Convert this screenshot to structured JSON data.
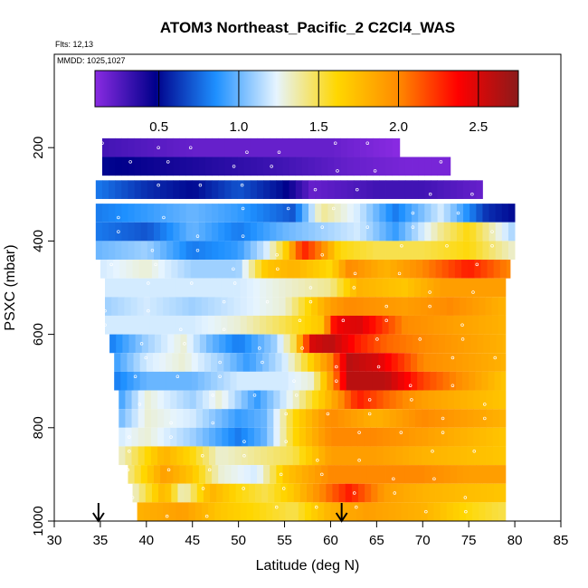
{
  "chart_data": {
    "type": "heatmap",
    "title": "ATOM3 Northeast_Pacific_2 C2Cl4_WAS",
    "notes": [
      "Flts: 12,13",
      "MMDD: 1025,1027"
    ],
    "xlabel": "Latitude (deg N)",
    "ylabel": "PSXC (mbar)",
    "xlim": [
      30,
      85
    ],
    "ylim": [
      1000,
      0
    ],
    "xticks": [
      "30",
      "35",
      "40",
      "45",
      "50",
      "55",
      "60",
      "65",
      "70",
      "75",
      "80",
      "85"
    ],
    "yticks": [
      "200",
      "400",
      "600",
      "800",
      "1000"
    ],
    "colorbar": {
      "min": 0.1,
      "max": 2.75,
      "ticks": [
        "0.5",
        "1.0",
        "1.5",
        "2.0",
        "2.5"
      ],
      "colors": [
        "#8a2be2",
        "#00008b",
        "#1e90ff",
        "#e6f4ff",
        "#ffd700",
        "#ff8c00",
        "#ff0000",
        "#8b1a1a"
      ]
    },
    "arrows_lat": [
      34.8,
      61.2
    ],
    "bands": [
      {
        "p": 200,
        "lat0": 35.2,
        "lat1": 67.5,
        "stops": [
          [
            35,
            0.3
          ],
          [
            45,
            0.2
          ],
          [
            55,
            0.2
          ],
          [
            60,
            0.2
          ],
          [
            67.5,
            0.1
          ]
        ]
      },
      {
        "p": 240,
        "lat0": 35.2,
        "lat1": 73.0,
        "stops": [
          [
            35,
            0.5
          ],
          [
            45,
            0.4
          ],
          [
            55,
            0.3
          ],
          [
            62,
            0.2
          ],
          [
            68,
            0.15
          ],
          [
            73,
            0.15
          ]
        ]
      },
      {
        "p": 290,
        "lat0": 34.5,
        "lat1": 76.5,
        "stops": [
          [
            34.5,
            0.8
          ],
          [
            40,
            0.6
          ],
          [
            45,
            0.5
          ],
          [
            50,
            0.7
          ],
          [
            55,
            0.5
          ],
          [
            58,
            0.2
          ],
          [
            65,
            0.3
          ],
          [
            70,
            0.3
          ],
          [
            76.5,
            0.2
          ]
        ]
      },
      {
        "p": 340,
        "lat0": 34.5,
        "lat1": 80.0,
        "stops": [
          [
            34.5,
            0.8
          ],
          [
            40,
            0.9
          ],
          [
            45,
            1.0
          ],
          [
            50,
            0.9
          ],
          [
            56,
            0.7
          ],
          [
            59,
            1.4
          ],
          [
            63,
            1.2
          ],
          [
            67,
            0.8
          ],
          [
            72,
            1.2
          ],
          [
            77,
            0.6
          ],
          [
            80,
            0.5
          ]
        ]
      },
      {
        "p": 380,
        "lat0": 34.5,
        "lat1": 80.0,
        "stops": [
          [
            34.5,
            0.8
          ],
          [
            40,
            0.7
          ],
          [
            45,
            1.0
          ],
          [
            50,
            0.8
          ],
          [
            55,
            1.0
          ],
          [
            59,
            1.1
          ],
          [
            63,
            1.2
          ],
          [
            67,
            0.9
          ],
          [
            72,
            1.4
          ],
          [
            75,
            1.6
          ],
          [
            80,
            1.1
          ]
        ]
      },
      {
        "p": 420,
        "lat0": 34.5,
        "lat1": 80.0,
        "stops": [
          [
            34.5,
            1.0
          ],
          [
            40,
            1.1
          ],
          [
            45,
            0.8
          ],
          [
            50,
            0.9
          ],
          [
            53,
            1.2
          ],
          [
            55,
            1.6
          ],
          [
            57,
            2.3
          ],
          [
            59,
            2.0
          ],
          [
            61,
            1.6
          ],
          [
            65,
            1.5
          ],
          [
            70,
            1.5
          ],
          [
            75,
            1.6
          ],
          [
            80,
            1.3
          ]
        ]
      },
      {
        "p": 460,
        "lat0": 35.0,
        "lat1": 79.5,
        "stops": [
          [
            35,
            1.2
          ],
          [
            40,
            1.3
          ],
          [
            45,
            1.1
          ],
          [
            50,
            1.1
          ],
          [
            53,
            1.7
          ],
          [
            56,
            1.8
          ],
          [
            60,
            1.6
          ],
          [
            62,
            2.0
          ],
          [
            66,
            1.8
          ],
          [
            70,
            2.0
          ],
          [
            75,
            2.3
          ],
          [
            79.5,
            2.0
          ]
        ]
      },
      {
        "p": 500,
        "lat0": 35.5,
        "lat1": 79.0,
        "stops": [
          [
            35.5,
            1.2
          ],
          [
            40,
            1.2
          ],
          [
            45,
            1.2
          ],
          [
            50,
            1.2
          ],
          [
            55,
            1.3
          ],
          [
            60,
            1.4
          ],
          [
            63,
            1.8
          ],
          [
            68,
            1.7
          ],
          [
            72,
            1.9
          ],
          [
            79,
            1.9
          ]
        ]
      },
      {
        "p": 540,
        "lat0": 35.5,
        "lat1": 79.0,
        "stops": [
          [
            35.5,
            1.1
          ],
          [
            40,
            1.2
          ],
          [
            45,
            1.1
          ],
          [
            50,
            1.2
          ],
          [
            55,
            1.3
          ],
          [
            60,
            1.9
          ],
          [
            62,
            2.0
          ],
          [
            68,
            1.9
          ],
          [
            73,
            2.0
          ],
          [
            79,
            1.8
          ]
        ]
      },
      {
        "p": 580,
        "lat0": 35.5,
        "lat1": 79.0,
        "stops": [
          [
            35.5,
            1.2
          ],
          [
            40,
            1.2
          ],
          [
            45,
            1.2
          ],
          [
            50,
            1.3
          ],
          [
            55,
            1.5
          ],
          [
            59,
            1.7
          ],
          [
            60.5,
            2.4
          ],
          [
            63,
            2.5
          ],
          [
            68,
            2.0
          ],
          [
            73,
            1.9
          ],
          [
            79,
            1.8
          ]
        ]
      },
      {
        "p": 620,
        "lat0": 36.0,
        "lat1": 79.0,
        "stops": [
          [
            36,
            0.8
          ],
          [
            40,
            1.1
          ],
          [
            44,
            1.3
          ],
          [
            47,
            1.0
          ],
          [
            50,
            0.8
          ],
          [
            54,
            1.1
          ],
          [
            56,
            1.5
          ],
          [
            58,
            2.5
          ],
          [
            60,
            2.6
          ],
          [
            63,
            2.3
          ],
          [
            66,
            2.1
          ],
          [
            70,
            2.0
          ],
          [
            79,
            1.8
          ]
        ]
      },
      {
        "p": 660,
        "lat0": 36.5,
        "lat1": 79.0,
        "stops": [
          [
            36.5,
            0.9
          ],
          [
            40,
            1.2
          ],
          [
            44,
            1.3
          ],
          [
            48,
            1.1
          ],
          [
            51,
            0.9
          ],
          [
            55,
            1.2
          ],
          [
            57,
            1.5
          ],
          [
            60,
            2.0
          ],
          [
            62,
            2.6
          ],
          [
            65,
            2.5
          ],
          [
            70,
            2.0
          ],
          [
            79,
            1.8
          ]
        ]
      },
      {
        "p": 700,
        "lat0": 36.5,
        "lat1": 79.0,
        "stops": [
          [
            36.5,
            0.8
          ],
          [
            40,
            1.0
          ],
          [
            45,
            1.0
          ],
          [
            50,
            1.2
          ],
          [
            55,
            1.2
          ],
          [
            58,
            1.3
          ],
          [
            60,
            1.9
          ],
          [
            62,
            2.6
          ],
          [
            66,
            2.6
          ],
          [
            70,
            2.2
          ],
          [
            79,
            1.7
          ]
        ]
      },
      {
        "p": 740,
        "lat0": 37.0,
        "lat1": 79.0,
        "stops": [
          [
            37,
            0.9
          ],
          [
            40,
            1.3
          ],
          [
            45,
            1.1
          ],
          [
            48,
            1.3
          ],
          [
            52,
            0.9
          ],
          [
            56,
            1.3
          ],
          [
            60,
            1.8
          ],
          [
            63,
            2.3
          ],
          [
            66,
            2.1
          ],
          [
            70,
            1.9
          ],
          [
            79,
            1.7
          ]
        ]
      },
      {
        "p": 780,
        "lat0": 37.0,
        "lat1": 79.0,
        "stops": [
          [
            37,
            1.0
          ],
          [
            40,
            1.3
          ],
          [
            45,
            1.2
          ],
          [
            50,
            0.9
          ],
          [
            53,
            1.0
          ],
          [
            56,
            1.6
          ],
          [
            60,
            2.0
          ],
          [
            65,
            1.8
          ],
          [
            70,
            2.0
          ],
          [
            79,
            1.8
          ]
        ]
      },
      {
        "p": 820,
        "lat0": 37.0,
        "lat1": 79.0,
        "stops": [
          [
            37,
            1.2
          ],
          [
            40,
            1.3
          ],
          [
            45,
            1.1
          ],
          [
            50,
            0.8
          ],
          [
            53,
            1.0
          ],
          [
            56,
            1.6
          ],
          [
            60,
            2.0
          ],
          [
            65,
            2.0
          ],
          [
            70,
            1.9
          ],
          [
            79,
            1.7
          ]
        ]
      },
      {
        "p": 860,
        "lat0": 37.0,
        "lat1": 79.0,
        "stops": [
          [
            37,
            1.3
          ],
          [
            42,
            1.8
          ],
          [
            45,
            1.6
          ],
          [
            48,
            1.3
          ],
          [
            52,
            1.4
          ],
          [
            56,
            1.5
          ],
          [
            60,
            1.9
          ],
          [
            65,
            1.9
          ],
          [
            70,
            1.8
          ],
          [
            79,
            1.7
          ]
        ]
      },
      {
        "p": 900,
        "lat0": 38.0,
        "lat1": 79.0,
        "stops": [
          [
            38,
            1.4
          ],
          [
            42,
            1.9
          ],
          [
            45,
            1.7
          ],
          [
            48,
            1.3
          ],
          [
            52,
            1.2
          ],
          [
            55,
            1.7
          ],
          [
            60,
            2.0
          ],
          [
            65,
            2.0
          ],
          [
            70,
            2.0
          ],
          [
            75,
            1.9
          ],
          [
            79,
            1.9
          ]
        ]
      },
      {
        "p": 940,
        "lat0": 38.5,
        "lat1": 79.0,
        "stops": [
          [
            38.5,
            1.3
          ],
          [
            42,
            1.8
          ],
          [
            44,
            1.3
          ],
          [
            47,
            1.8
          ],
          [
            50,
            1.6
          ],
          [
            53,
            1.5
          ],
          [
            56,
            1.7
          ],
          [
            60,
            2.1
          ],
          [
            62,
            2.3
          ],
          [
            66,
            1.9
          ],
          [
            70,
            1.8
          ],
          [
            79,
            1.7
          ]
        ]
      },
      {
        "p": 980,
        "lat0": 39.0,
        "lat1": 79.0,
        "stops": [
          [
            39,
            1.8
          ],
          [
            44,
            1.9
          ],
          [
            48,
            1.7
          ],
          [
            52,
            1.6
          ],
          [
            56,
            1.5
          ],
          [
            60,
            1.8
          ],
          [
            64,
            1.9
          ],
          [
            70,
            1.8
          ],
          [
            75,
            1.6
          ],
          [
            79,
            1.5
          ]
        ]
      }
    ]
  }
}
